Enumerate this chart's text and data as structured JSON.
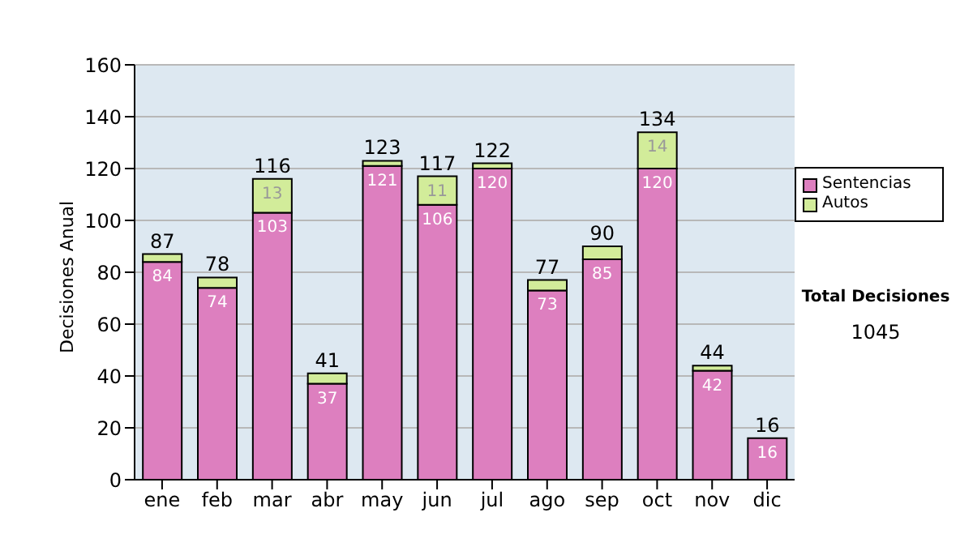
{
  "chart_data": {
    "type": "bar",
    "ylabel": "Decisiones Anual",
    "categories": [
      "ene",
      "feb",
      "mar",
      "abr",
      "may",
      "jun",
      "jul",
      "ago",
      "sep",
      "oct",
      "nov",
      "dic"
    ],
    "series": [
      {
        "name": "Sentencias",
        "color": "#dd7fbf",
        "values": [
          84,
          74,
          103,
          37,
          121,
          106,
          120,
          73,
          85,
          120,
          42,
          16
        ],
        "value_labels": [
          "84",
          "74",
          "103",
          "37",
          "121",
          "106",
          "120",
          "73",
          "85",
          "120",
          "42",
          "16"
        ]
      },
      {
        "name": "Autos",
        "color": "#d2ec9a",
        "values": [
          3,
          4,
          13,
          4,
          2,
          11,
          2,
          4,
          5,
          14,
          2,
          0
        ],
        "value_labels": [
          null,
          null,
          "13",
          null,
          null,
          "11",
          null,
          null,
          null,
          "14",
          null,
          null
        ]
      }
    ],
    "stacked": true,
    "totals": [
      "87",
      "78",
      "116",
      "41",
      "123",
      "117",
      "122",
      "77",
      "90",
      "134",
      "44",
      "16"
    ],
    "ylim": [
      0,
      160
    ],
    "yticks": [
      0,
      20,
      40,
      60,
      80,
      100,
      120,
      140,
      160
    ],
    "grid": "y",
    "legend": "right",
    "annotations": [
      "Total Decisiones",
      "1045"
    ]
  }
}
